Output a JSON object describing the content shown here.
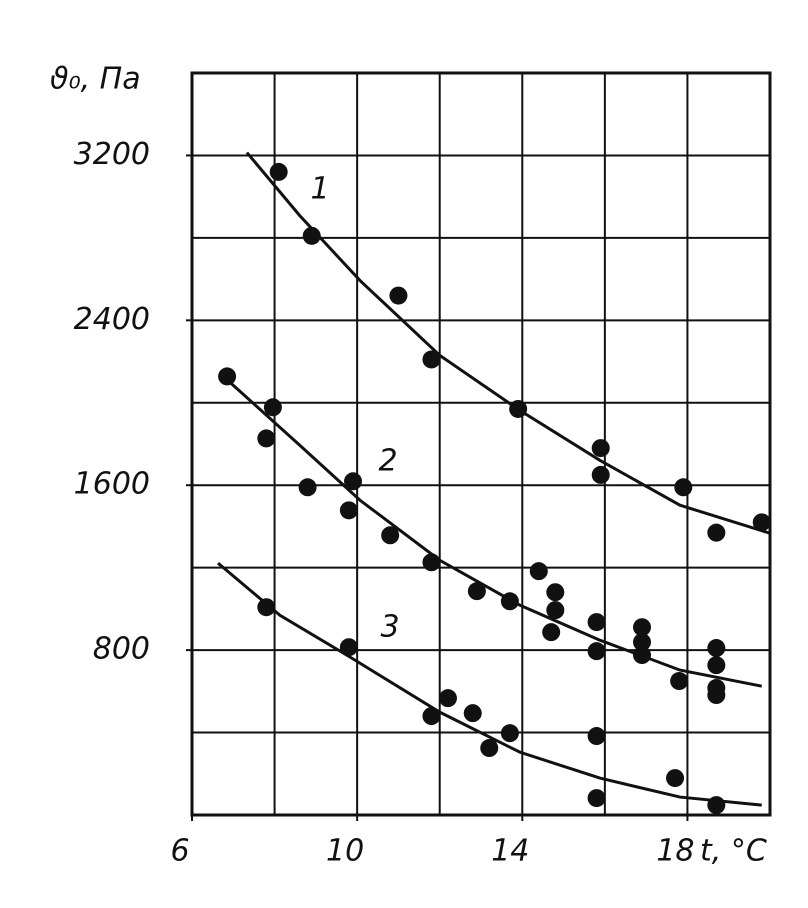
{
  "chart_data": {
    "type": "scatter",
    "y_label": "ϑ₀, Па",
    "x_label": "t, °C",
    "xlim": [
      6,
      20
    ],
    "xticks": [
      6,
      10,
      14,
      18
    ],
    "xgrid": [
      6,
      8,
      10,
      12,
      14,
      16,
      18,
      20
    ],
    "ylim": [
      0,
      3600
    ],
    "yticks": [
      800,
      1600,
      2400,
      3200
    ],
    "ygrid": [
      0,
      400,
      800,
      1200,
      1600,
      2000,
      2400,
      2800,
      3200,
      3600
    ],
    "grid": true,
    "color": "#111111",
    "series": [
      {
        "name": "1",
        "x": [
          8.1,
          8.9,
          11,
          11.8,
          13.9,
          15.9,
          15.9,
          17.9,
          18.7,
          19.8
        ],
        "values": [
          3120,
          2810,
          2520,
          2210,
          1970,
          1780,
          1650,
          1590,
          1370,
          1420
        ],
        "curve_x": [
          7.33,
          8.61,
          10.07,
          12.0,
          13.94,
          15.88,
          17.82,
          20.0
        ],
        "curve_y": [
          3214,
          2908,
          2593,
          2230,
          1963,
          1721,
          1503,
          1367
        ]
      },
      {
        "name": "2",
        "x": [
          6.85,
          7.96,
          7.8,
          8.8,
          9.9,
          9.8,
          10.8,
          11.8,
          12.9,
          13.7,
          14.4,
          14.8,
          14.8,
          14.7,
          15.8,
          15.8,
          16.9,
          16.9,
          16.9,
          17.8,
          18.7,
          18.7,
          18.7,
          18.7
        ],
        "values": [
          2128,
          1978,
          1827,
          1590,
          1619,
          1478,
          1357,
          1226,
          1086,
          1037,
          1183,
          1081,
          994,
          887,
          936,
          795,
          911,
          839,
          776,
          650,
          810,
          727,
          616,
          582
        ],
        "curve_x": [
          6.92,
          8.61,
          10.07,
          12.0,
          13.94,
          15.88,
          17.82,
          19.8
        ],
        "curve_y": [
          2099,
          1794,
          1527,
          1236,
          1018,
          848,
          703,
          625
        ]
      },
      {
        "name": "3",
        "x": [
          7.8,
          9.8,
          11.8,
          12.2,
          12.8,
          13.2,
          13.7,
          15.8,
          15.8,
          17.7,
          18.7
        ],
        "values": [
          1008,
          814,
          480,
          567,
          494,
          325,
          397,
          383,
          82,
          179,
          48
        ],
        "curve_x": [
          6.63,
          8.13,
          9.83,
          12.0,
          13.94,
          15.88,
          17.82,
          19.8
        ],
        "curve_y": [
          1222,
          969,
          766,
          499,
          305,
          179,
          87,
          48
        ]
      }
    ]
  }
}
